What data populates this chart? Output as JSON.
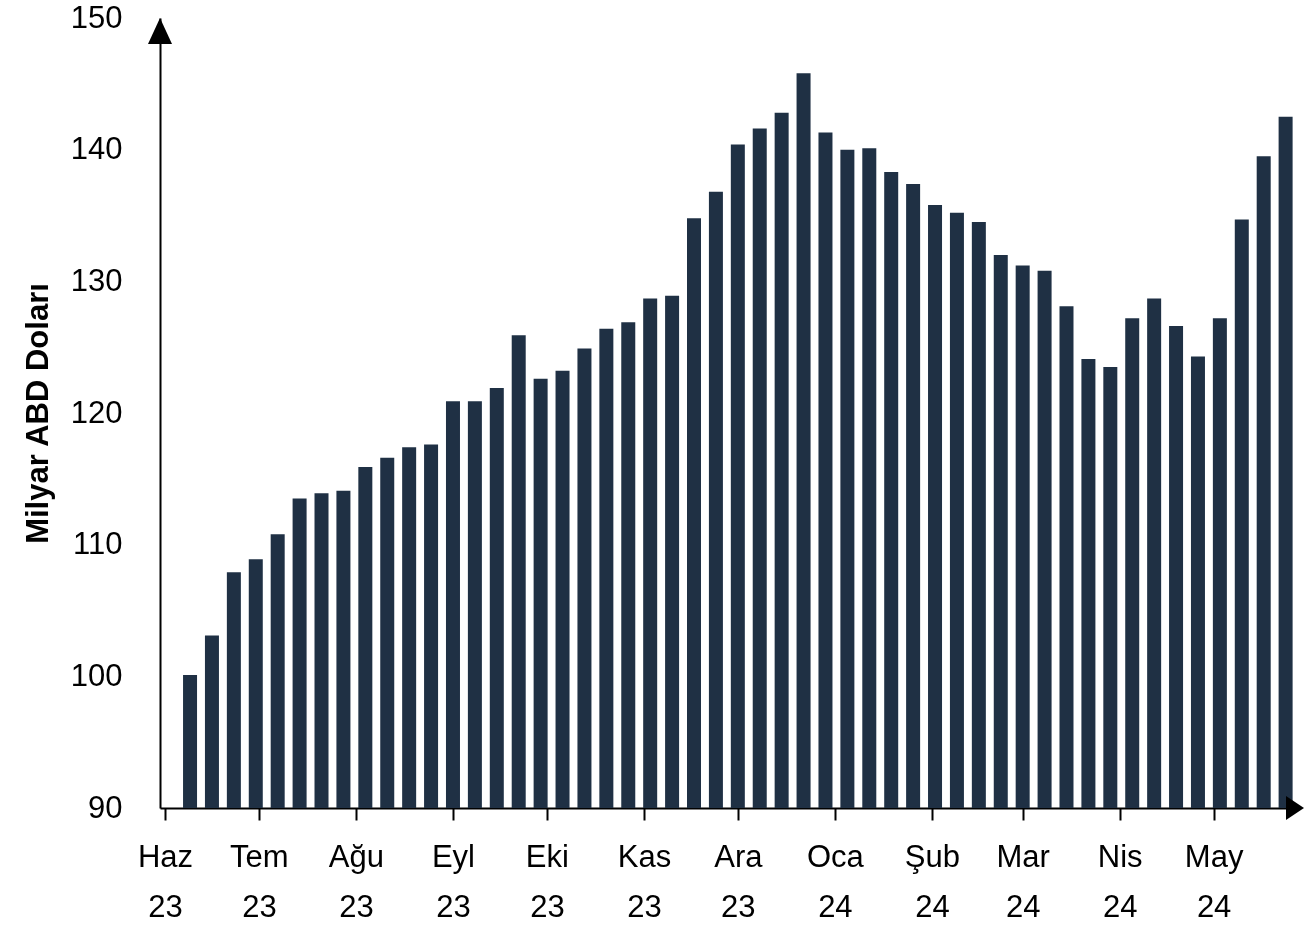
{
  "chart_data": {
    "type": "bar",
    "ylabel": "Milyar ABD Doları",
    "color": "#1f3044",
    "x": [
      "2023-06-09",
      "2023-06-16",
      "2023-06-23",
      "2023-06-30",
      "2023-07-07",
      "2023-07-14",
      "2023-07-21",
      "2023-07-28",
      "2023-08-04",
      "2023-08-11",
      "2023-08-18",
      "2023-08-25",
      "2023-09-01",
      "2023-09-08",
      "2023-09-15",
      "2023-09-22",
      "2023-09-29",
      "2023-10-06",
      "2023-10-13",
      "2023-10-20",
      "2023-10-27",
      "2023-11-03",
      "2023-11-10",
      "2023-11-17",
      "2023-11-24",
      "2023-12-01",
      "2023-12-08",
      "2023-12-15",
      "2023-12-22",
      "2023-12-29",
      "2024-01-05",
      "2024-01-12",
      "2024-01-19",
      "2024-01-26",
      "2024-02-02",
      "2024-02-09",
      "2024-02-16",
      "2024-02-23",
      "2024-03-01",
      "2024-03-08",
      "2024-03-15",
      "2024-03-22",
      "2024-03-29",
      "2024-04-05",
      "2024-04-12",
      "2024-04-19",
      "2024-04-26",
      "2024-05-03",
      "2024-05-10",
      "2024-05-17",
      "2024-05-24"
    ],
    "values": [
      100.1,
      103.1,
      107.9,
      108.9,
      110.8,
      113.5,
      113.9,
      114.1,
      115.9,
      116.6,
      117.4,
      117.6,
      120.9,
      120.9,
      121.9,
      125.9,
      122.6,
      123.2,
      124.9,
      126.4,
      126.9,
      128.7,
      128.9,
      134.8,
      136.8,
      140.4,
      141.6,
      142.8,
      145.8,
      141.3,
      140.0,
      140.1,
      138.3,
      137.4,
      135.8,
      135.2,
      134.5,
      132.0,
      131.2,
      130.8,
      128.1,
      124.1,
      123.5,
      127.2,
      128.7,
      126.6,
      124.3,
      127.2,
      134.7,
      139.5,
      142.5
    ],
    "xlim": [
      "2023-06-01",
      "2024-05-27"
    ],
    "xticks": [
      {
        "value": "2023-06-01",
        "label": "Haz 23"
      },
      {
        "value": "2023-07-01",
        "label": "Tem 23"
      },
      {
        "value": "2023-08-01",
        "label": "Ağu 23"
      },
      {
        "value": "2023-09-01",
        "label": "Eyl 23"
      },
      {
        "value": "2023-10-01",
        "label": "Eki 23"
      },
      {
        "value": "2023-11-01",
        "label": "Kas 23"
      },
      {
        "value": "2023-12-01",
        "label": "Ara 23"
      },
      {
        "value": "2024-01-01",
        "label": "Oca 24"
      },
      {
        "value": "2024-02-01",
        "label": "Şub 24"
      },
      {
        "value": "2024-03-01",
        "label": "Mar 24"
      },
      {
        "value": "2024-04-01",
        "label": "Nis 24"
      },
      {
        "value": "2024-05-01",
        "label": "May 24"
      }
    ],
    "ylim": [
      90,
      150
    ],
    "yticks": [
      90,
      100,
      110,
      120,
      130,
      140,
      150
    ],
    "grid": false
  }
}
